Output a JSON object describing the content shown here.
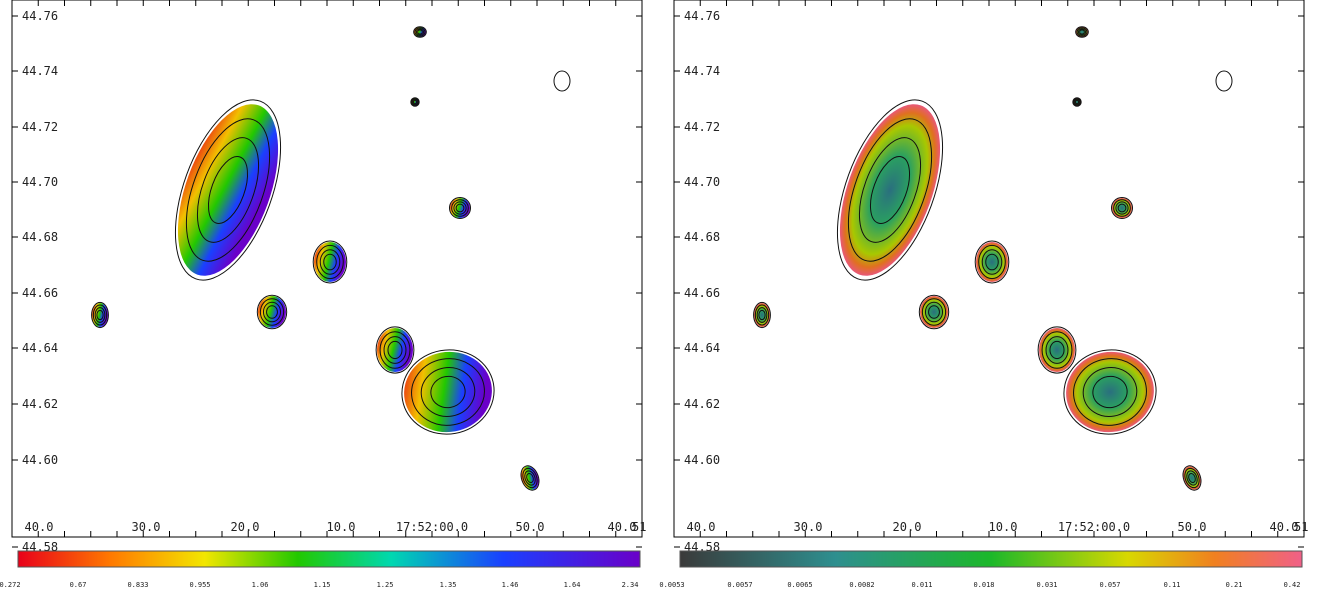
{
  "panels": [
    {
      "yticks": [
        "44.76",
        "44.74",
        "44.72",
        "44.70",
        "44.68",
        "44.66",
        "44.64",
        "44.62",
        "44.60",
        "44.58"
      ],
      "xticks": [
        "40.0",
        "30.0",
        "20.0",
        "10.0",
        "17:52:00.0",
        "50.0",
        "40.0",
        "51"
      ],
      "colorbar": {
        "labels": [
          "0.272",
          "0.67",
          "0.833",
          "0.955",
          "1.06",
          "1.15",
          "1.25",
          "1.35",
          "1.46",
          "1.64",
          "2.34"
        ]
      }
    },
    {
      "yticks": [
        "44.76",
        "44.74",
        "44.72",
        "44.70",
        "44.68",
        "44.66",
        "44.64",
        "44.62",
        "44.60",
        "44.58"
      ],
      "xticks": [
        "40.0",
        "30.0",
        "20.0",
        "10.0",
        "17:52:00.0",
        "50.0",
        "40.0",
        "51"
      ],
      "colorbar": {
        "labels": [
          "0.0053",
          "0.0057",
          "0.0065",
          "0.0082",
          "0.011",
          "0.018",
          "0.031",
          "0.057",
          "0.11",
          "0.21",
          "0.42"
        ]
      }
    }
  ]
}
